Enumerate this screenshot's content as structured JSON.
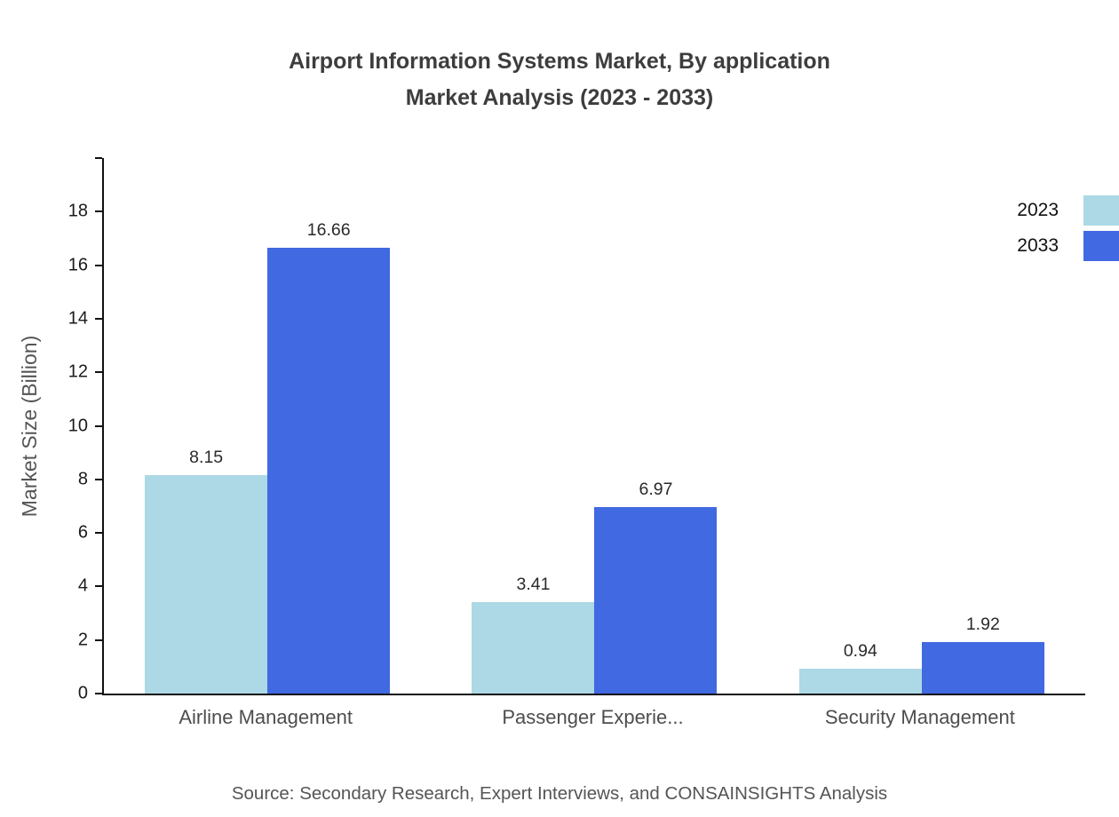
{
  "chart_data": {
    "type": "bar",
    "title": "Airport Information Systems Market, By application\nMarket Analysis (2023 - 2033)",
    "ylabel": "Market Size (Billion)",
    "xlabel": "",
    "categories": [
      "Airline Management",
      "Passenger Experie...",
      "Security Management"
    ],
    "series": [
      {
        "name": "2023",
        "color": "#add8e6",
        "values": [
          8.15,
          3.41,
          0.94
        ]
      },
      {
        "name": "2033",
        "color": "#4169e1",
        "values": [
          16.66,
          6.97,
          1.92
        ]
      }
    ],
    "value_labels": [
      [
        "8.15",
        "16.66"
      ],
      [
        "3.41",
        "6.97"
      ],
      [
        "0.94",
        "1.92"
      ]
    ],
    "ylim": [
      0,
      20
    ],
    "yticks": [
      0,
      2,
      4,
      6,
      8,
      10,
      12,
      14,
      16,
      18
    ],
    "grid": false,
    "legend_position": "top-right",
    "source": "Source: Secondary Research, Expert Interviews, and CONSAINSIGHTS Analysis"
  }
}
